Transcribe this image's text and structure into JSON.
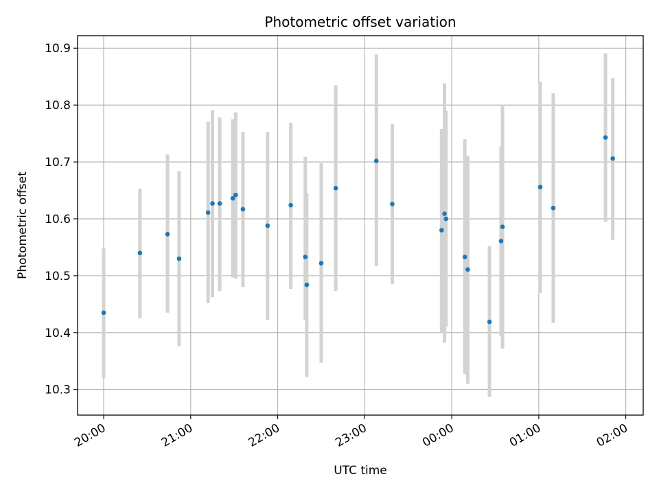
{
  "chart_data": {
    "type": "scatter",
    "title": "Photometric offset variation",
    "xlabel": "UTC time",
    "ylabel": "Photometric offset",
    "x_unit": "UTC time (HH:MM), 20:00 on day 1 through 02:00 on day 2",
    "xlim": [
      "19:42",
      "02:12"
    ],
    "ylim": [
      10.255,
      10.922
    ],
    "x_ticks": [
      "20:00",
      "21:00",
      "22:00",
      "23:00",
      "00:00",
      "01:00",
      "02:00"
    ],
    "y_ticks": [
      10.3,
      10.4,
      10.5,
      10.6,
      10.7,
      10.8,
      10.9
    ],
    "y_tick_labels": [
      "10.3",
      "10.4",
      "10.5",
      "10.6",
      "10.7",
      "10.8",
      "10.9"
    ],
    "grid": true,
    "colors": {
      "points": "#1f77b4",
      "errorbars": "#d3d3d3",
      "grid": "#b0b0b0"
    },
    "series": [
      {
        "points": [
          {
            "x": "20:00",
            "y": 10.435,
            "ylow": 10.32,
            "yhigh": 10.548
          },
          {
            "x": "20:25",
            "y": 10.54,
            "ylow": 10.425,
            "yhigh": 10.653
          },
          {
            "x": "20:44",
            "y": 10.573,
            "ylow": 10.435,
            "yhigh": 10.713
          },
          {
            "x": "20:52",
            "y": 10.53,
            "ylow": 10.376,
            "yhigh": 10.684
          },
          {
            "x": "21:12",
            "y": 10.611,
            "ylow": 10.452,
            "yhigh": 10.771
          },
          {
            "x": "21:15",
            "y": 10.627,
            "ylow": 10.462,
            "yhigh": 10.791
          },
          {
            "x": "21:20",
            "y": 10.627,
            "ylow": 10.473,
            "yhigh": 10.778
          },
          {
            "x": "21:29",
            "y": 10.636,
            "ylow": 10.497,
            "yhigh": 10.775
          },
          {
            "x": "21:31",
            "y": 10.642,
            "ylow": 10.495,
            "yhigh": 10.787
          },
          {
            "x": "21:36",
            "y": 10.617,
            "ylow": 10.48,
            "yhigh": 10.753
          },
          {
            "x": "21:53",
            "y": 10.588,
            "ylow": 10.422,
            "yhigh": 10.753
          },
          {
            "x": "22:09",
            "y": 10.624,
            "ylow": 10.477,
            "yhigh": 10.769
          },
          {
            "x": "22:19",
            "y": 10.533,
            "ylow": 10.422,
            "yhigh": 10.709
          },
          {
            "x": "22:20",
            "y": 10.484,
            "ylow": 10.322,
            "yhigh": 10.645
          },
          {
            "x": "22:30",
            "y": 10.522,
            "ylow": 10.347,
            "yhigh": 10.698
          },
          {
            "x": "22:40",
            "y": 10.654,
            "ylow": 10.473,
            "yhigh": 10.835
          },
          {
            "x": "23:08",
            "y": 10.702,
            "ylow": 10.517,
            "yhigh": 10.889
          },
          {
            "x": "23:19",
            "y": 10.626,
            "ylow": 10.485,
            "yhigh": 10.767
          },
          {
            "x": "23:53",
            "y": 10.58,
            "ylow": 10.4,
            "yhigh": 10.758
          },
          {
            "x": "23:55",
            "y": 10.609,
            "ylow": 10.382,
            "yhigh": 10.838
          },
          {
            "x": "23:56",
            "y": 10.6,
            "ylow": 10.41,
            "yhigh": 10.79
          },
          {
            "x": "00:09",
            "y": 10.533,
            "ylow": 10.327,
            "yhigh": 10.74
          },
          {
            "x": "00:11",
            "y": 10.511,
            "ylow": 10.31,
            "yhigh": 10.711
          },
          {
            "x": "00:26",
            "y": 10.419,
            "ylow": 10.287,
            "yhigh": 10.552
          },
          {
            "x": "00:34",
            "y": 10.561,
            "ylow": 10.394,
            "yhigh": 10.727
          },
          {
            "x": "00:35",
            "y": 10.586,
            "ylow": 10.372,
            "yhigh": 10.801
          },
          {
            "x": "01:01",
            "y": 10.656,
            "ylow": 10.47,
            "yhigh": 10.841
          },
          {
            "x": "01:10",
            "y": 10.619,
            "ylow": 10.417,
            "yhigh": 10.821
          },
          {
            "x": "01:46",
            "y": 10.743,
            "ylow": 10.595,
            "yhigh": 10.891
          },
          {
            "x": "01:51",
            "y": 10.706,
            "ylow": 10.563,
            "yhigh": 10.847
          }
        ]
      }
    ]
  }
}
